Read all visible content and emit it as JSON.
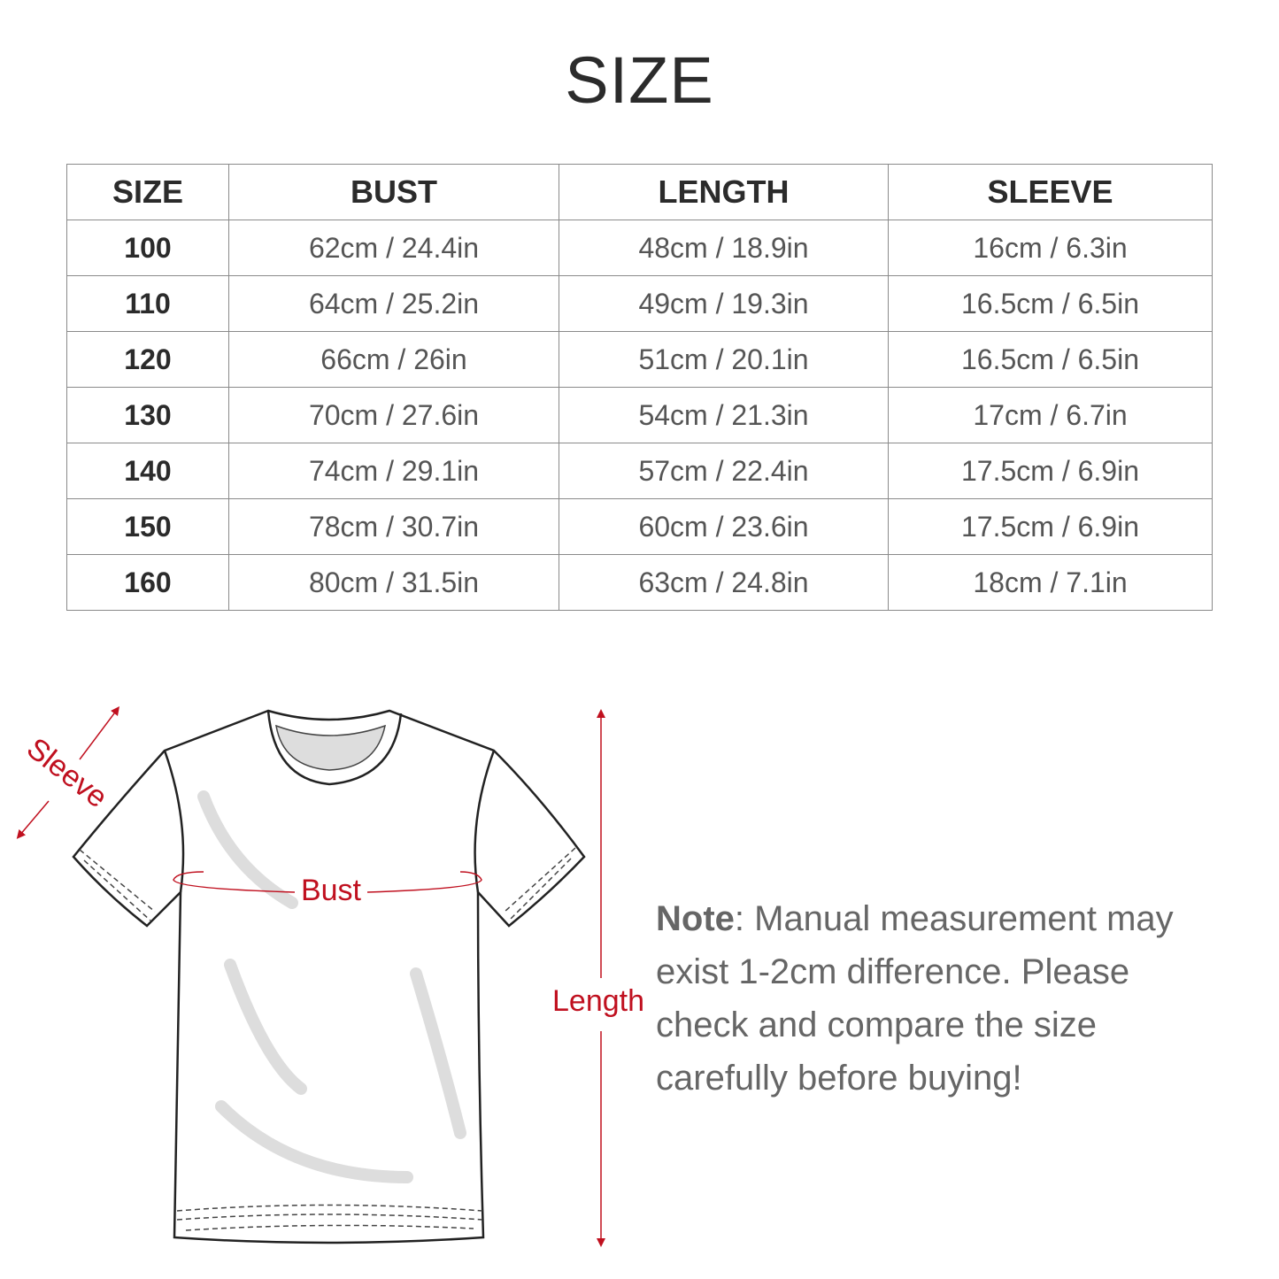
{
  "title": "SIZE",
  "table": {
    "headers": [
      "SIZE",
      "BUST",
      "LENGTH",
      "SLEEVE"
    ],
    "rows": [
      [
        "100",
        "62cm / 24.4in",
        "48cm / 18.9in",
        "16cm / 6.3in"
      ],
      [
        "110",
        "64cm / 25.2in",
        "49cm / 19.3in",
        "16.5cm / 6.5in"
      ],
      [
        "120",
        "66cm / 26in",
        "51cm / 20.1in",
        "16.5cm / 6.5in"
      ],
      [
        "130",
        "70cm / 27.6in",
        "54cm / 21.3in",
        "17cm / 6.7in"
      ],
      [
        "140",
        "74cm / 29.1in",
        "57cm / 22.4in",
        "17.5cm / 6.9in"
      ],
      [
        "150",
        "78cm / 30.7in",
        "60cm / 23.6in",
        "17.5cm / 6.9in"
      ],
      [
        "160",
        "80cm / 31.5in",
        "63cm / 24.8in",
        "18cm / 7.1in"
      ]
    ]
  },
  "diagram": {
    "sleeve_label": "Sleeve",
    "bust_label": "Bust",
    "length_label": "Length",
    "accent_color": "#c0101f"
  },
  "note": {
    "label": "Note",
    "text": ": Manual measurement may exist 1-2cm difference. Please check and compare the size carefully before buying!"
  }
}
